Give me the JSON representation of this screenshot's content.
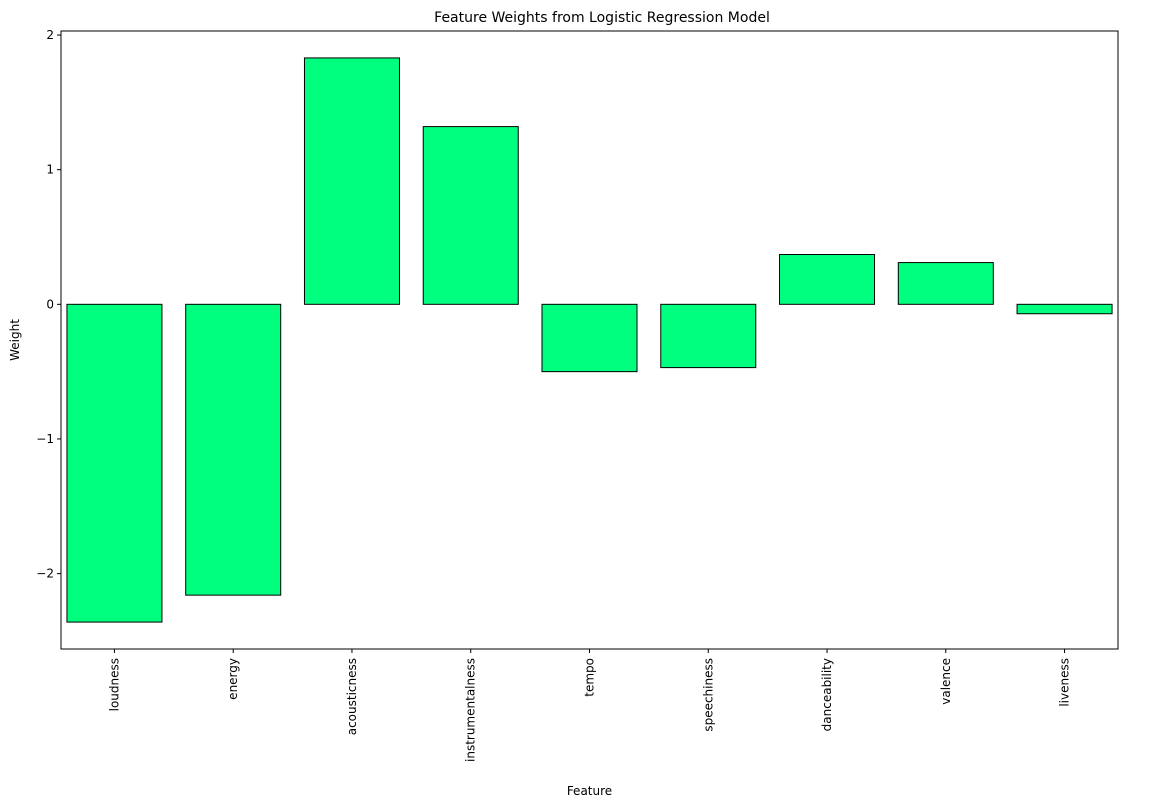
{
  "chart_data": {
    "type": "bar",
    "title": "Feature Weights from Logistic Regression Model",
    "xlabel": "Feature",
    "ylabel": "Weight",
    "categories": [
      "loudness",
      "energy",
      "acousticness",
      "instrumentalness",
      "tempo",
      "speechiness",
      "danceability",
      "valence",
      "liveness"
    ],
    "values": [
      -2.36,
      -2.16,
      1.83,
      1.32,
      -0.5,
      -0.47,
      0.37,
      0.31,
      -0.07
    ],
    "ylim": [
      -2.56,
      2.03
    ],
    "yticks": [
      -2,
      -1,
      0,
      1,
      2
    ],
    "ytick_labels": [
      "−2",
      "−1",
      "0",
      "1",
      "2"
    ],
    "bar_color": "#00ff7f",
    "edge_color": "#000000",
    "grid": false,
    "legend": "none"
  }
}
